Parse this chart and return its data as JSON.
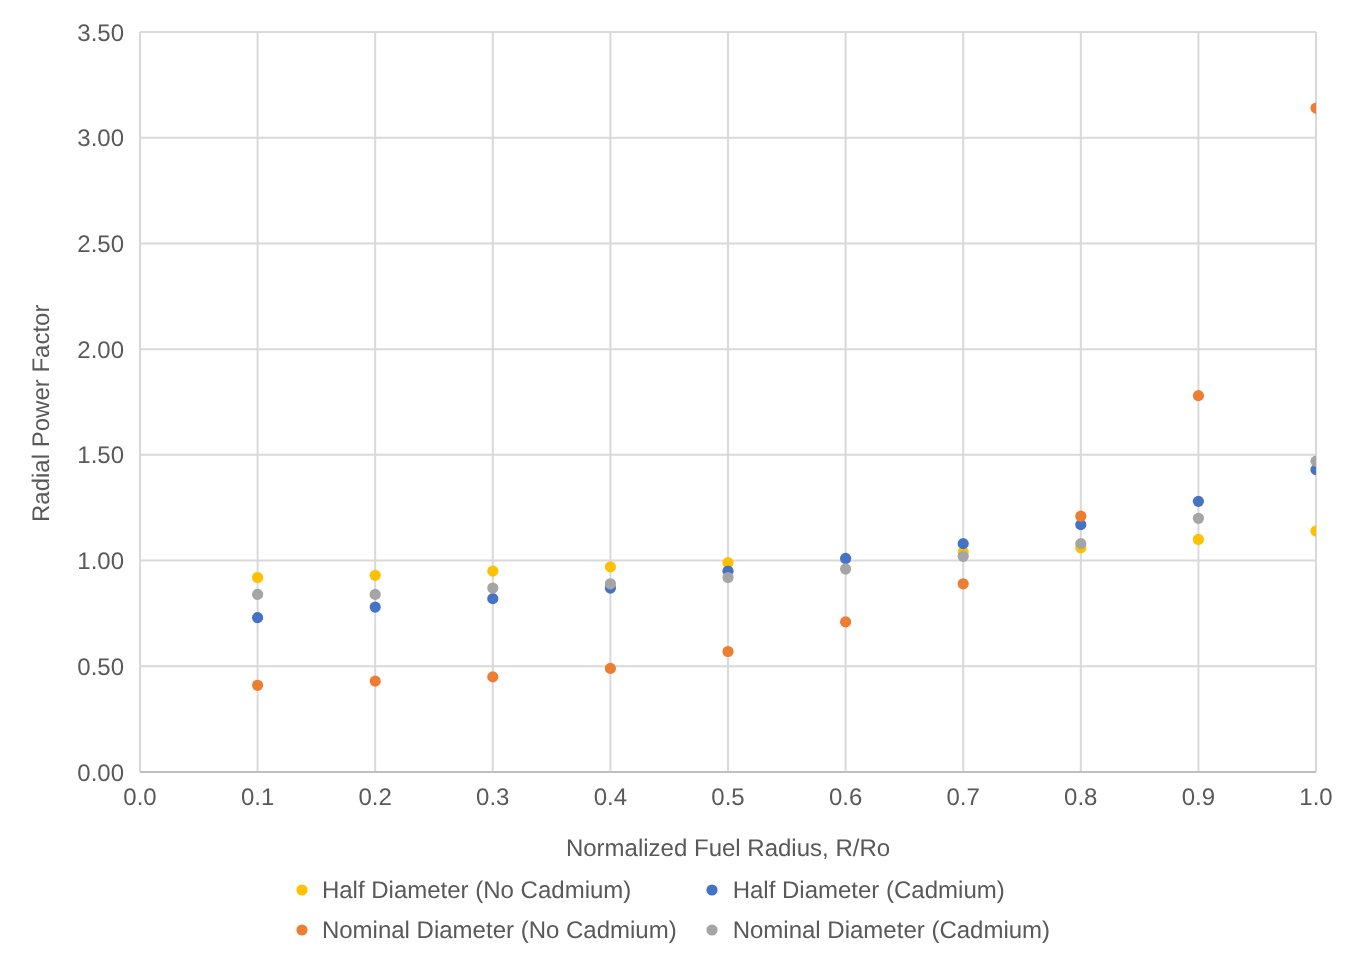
{
  "chart_data": {
    "type": "scatter",
    "xlabel": "Normalized Fuel Radius, R/Ro",
    "ylabel": "Radial Power Factor",
    "x": [
      0.1,
      0.2,
      0.3,
      0.4,
      0.5,
      0.6,
      0.7,
      0.8,
      0.9,
      1.0
    ],
    "series": [
      {
        "name": "Half Diameter (No Cadmium)",
        "color": "#ffc000",
        "values": [
          0.92,
          0.93,
          0.95,
          0.97,
          0.99,
          null,
          1.04,
          1.06,
          1.1,
          1.14
        ]
      },
      {
        "name": "Half Diameter (Cadmium)",
        "color": "#4472c4",
        "values": [
          0.73,
          0.78,
          0.82,
          0.87,
          0.95,
          1.01,
          1.08,
          1.17,
          1.28,
          1.43
        ]
      },
      {
        "name": "Nominal Diameter (No Cadmium)",
        "color": "#ed7d31",
        "values": [
          0.41,
          0.43,
          0.45,
          0.49,
          0.57,
          0.71,
          0.89,
          1.21,
          1.78,
          3.14
        ]
      },
      {
        "name": "Nominal Diameter (Cadmium)",
        "color": "#a5a5a5",
        "values": [
          0.84,
          0.84,
          0.87,
          0.89,
          0.92,
          0.96,
          1.02,
          1.08,
          1.2,
          1.47
        ]
      }
    ],
    "xlim": [
      0,
      1
    ],
    "xticks": [
      {
        "value": 0,
        "label": "0.0"
      },
      {
        "value": 0.1,
        "label": "0.1"
      },
      {
        "value": 0.2,
        "label": "0.2"
      },
      {
        "value": 0.3,
        "label": "0.3"
      },
      {
        "value": 0.4,
        "label": "0.4"
      },
      {
        "value": 0.5,
        "label": "0.5"
      },
      {
        "value": 0.6,
        "label": "0.6"
      },
      {
        "value": 0.7,
        "label": "0.7"
      },
      {
        "value": 0.8,
        "label": "0.8"
      },
      {
        "value": 0.9,
        "label": "0.9"
      },
      {
        "value": 1,
        "label": "1.0"
      }
    ],
    "ylim": [
      0,
      3.5
    ],
    "yticks": [
      {
        "value": 0,
        "label": "0.00"
      },
      {
        "value": 0.5,
        "label": "0.50"
      },
      {
        "value": 1,
        "label": "1.00"
      },
      {
        "value": 1.5,
        "label": "1.50"
      },
      {
        "value": 2,
        "label": "2.00"
      },
      {
        "value": 2.5,
        "label": "2.50"
      },
      {
        "value": 3,
        "label": "3.00"
      },
      {
        "value": 3.5,
        "label": "3.50"
      }
    ],
    "grid": true,
    "legend": "bottom",
    "marker": "circle"
  }
}
